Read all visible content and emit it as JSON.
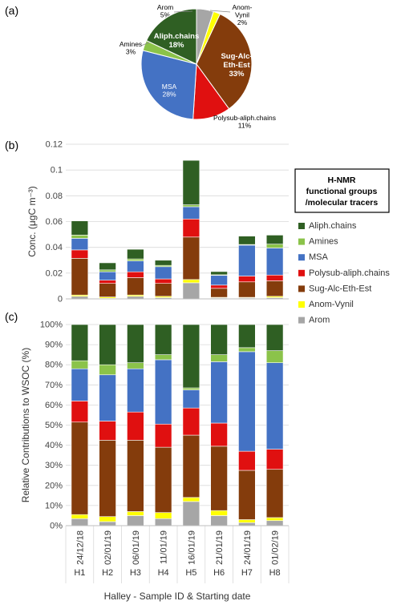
{
  "colors": {
    "Aliph.chains": "#2f5f23",
    "Amines": "#8bc34a",
    "MSA": "#4472c4",
    "Polysub-aliph.chains": "#e01010",
    "Sug-Alc-Eth-Est": "#843c0c",
    "Anom-Vynil": "#ffff00",
    "Arom": "#a6a6a6"
  },
  "panel_labels": [
    "(a)",
    "(b)",
    "(c)"
  ],
  "chart_data": [
    {
      "panel": "(a)",
      "type": "pie",
      "slices": [
        {
          "name": "Arom",
          "value": 5,
          "label": [
            "Arom",
            "5%"
          ]
        },
        {
          "name": "Anom-Vynil",
          "value": 2,
          "label": [
            "Anom-",
            "Vynil",
            "2%"
          ]
        },
        {
          "name": "Sug-Alc-Eth-Est",
          "value": 33,
          "label": [
            "Sug-Alc-",
            "Eth-Est",
            "33%"
          ]
        },
        {
          "name": "Polysub-aliph.chains",
          "value": 11,
          "label": [
            "Polysub-aliph.chains",
            "11%"
          ]
        },
        {
          "name": "MSA",
          "value": 28,
          "label": [
            "MSA",
            "28%"
          ]
        },
        {
          "name": "Amines",
          "value": 3,
          "label": [
            "Amines",
            "3%"
          ]
        },
        {
          "name": "Aliph.chains",
          "value": 18,
          "label": [
            "Aliph.chains",
            "18%"
          ]
        }
      ]
    },
    {
      "panel": "(b)",
      "type": "bar",
      "stacked": true,
      "ylabel": "Conc. (μgC m⁻³)",
      "ylim": [
        0,
        0.12
      ],
      "yticks": [
        "0",
        "0.02",
        "0.04",
        "0.06",
        "0.08",
        "0.1",
        "0.12"
      ],
      "legend_title": [
        "H-NMR",
        "functional groups",
        "/molecular tracers"
      ],
      "categories": [
        "H1",
        "H2",
        "H3",
        "H4",
        "H5",
        "H6",
        "H7",
        "H8"
      ],
      "series": [
        {
          "name": "Arom",
          "values": [
            0.002,
            0.0005,
            0.002,
            0.001,
            0.0125,
            0.0007,
            0.0007,
            0.001
          ]
        },
        {
          "name": "Anom-Vynil",
          "values": [
            0.001,
            0.001,
            0.001,
            0.001,
            0.0025,
            0.0005,
            0.0005,
            0.001
          ]
        },
        {
          "name": "Sug-Alc-Eth-Est",
          "values": [
            0.0285,
            0.0105,
            0.0135,
            0.01,
            0.033,
            0.007,
            0.012,
            0.012
          ]
        },
        {
          "name": "Polysub-aliph.chains",
          "values": [
            0.0065,
            0.0025,
            0.0045,
            0.0035,
            0.014,
            0.0025,
            0.0045,
            0.0045
          ]
        },
        {
          "name": "MSA",
          "values": [
            0.009,
            0.0065,
            0.0085,
            0.0095,
            0.0095,
            0.0075,
            0.024,
            0.021
          ]
        },
        {
          "name": "Amines",
          "values": [
            0.0025,
            0.0015,
            0.0015,
            0.001,
            0.0015,
            0.0005,
            0.0005,
            0.003
          ]
        },
        {
          "name": "Aliph.chains",
          "values": [
            0.011,
            0.0055,
            0.0075,
            0.004,
            0.0345,
            0.0025,
            0.0065,
            0.007
          ]
        }
      ]
    },
    {
      "panel": "(c)",
      "type": "bar",
      "stacked": true,
      "ylabel": "Relative Contributions to WSOC (%)",
      "ylim": [
        0,
        100
      ],
      "yticks": [
        "0%",
        "10%",
        "20%",
        "30%",
        "40%",
        "50%",
        "60%",
        "70%",
        "80%",
        "90%",
        "100%"
      ],
      "xlabel": "Halley - Sample ID & Starting date",
      "categories": [
        "H1",
        "H2",
        "H3",
        "H4",
        "H5",
        "H6",
        "H7",
        "H8"
      ],
      "dates": [
        "24/12/18",
        "02/01/19",
        "06/01/19",
        "11/01/19",
        "16/01/19",
        "21/01/19",
        "24/01/19",
        "01/02/19"
      ],
      "series": [
        {
          "name": "Arom",
          "values": [
            3.5,
            2,
            5,
            3.5,
            12,
            5,
            1.5,
            2.5
          ]
        },
        {
          "name": "Anom-Vynil",
          "values": [
            2,
            2.5,
            2,
            3,
            2,
            2.5,
            1.5,
            1.5
          ]
        },
        {
          "name": "Sug-Alc-Eth-Est",
          "values": [
            46,
            38,
            35.5,
            32.5,
            31,
            32,
            24.5,
            24
          ]
        },
        {
          "name": "Polysub-aliph.chains",
          "values": [
            10.5,
            9.5,
            14,
            11.5,
            13.5,
            11.5,
            9.5,
            10
          ]
        },
        {
          "name": "MSA",
          "values": [
            16,
            23,
            21.5,
            32,
            9,
            30.5,
            49.5,
            43
          ]
        },
        {
          "name": "Amines",
          "values": [
            4,
            5,
            3,
            2.5,
            1,
            3.5,
            2,
            6
          ]
        },
        {
          "name": "Aliph.chains",
          "values": [
            18,
            20,
            19,
            15,
            31.5,
            15,
            11.5,
            13
          ]
        }
      ]
    }
  ]
}
